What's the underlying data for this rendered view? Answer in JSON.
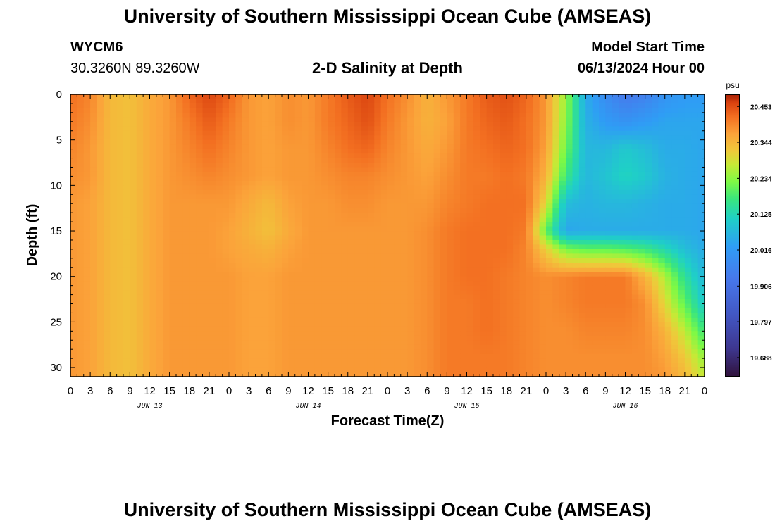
{
  "header": {
    "title": "University of Southern Mississippi Ocean Cube (AMSEAS)",
    "station_id": "WYCM6",
    "station_coords": "30.3260N  89.3260W",
    "subtitle": "2-D Salinity at Depth",
    "model_label": "Model Start Time",
    "model_time": "06/13/2024 Hour 00"
  },
  "footer": {
    "title": "University of Southern Mississippi Ocean Cube (AMSEAS)"
  },
  "chart_data": {
    "type": "heatmap",
    "title": "2-D Salinity at Depth",
    "xlabel": "Forecast Time(Z)",
    "ylabel": "Depth (ft)",
    "x_unit": "hours since model start",
    "xlim": [
      0,
      96
    ],
    "ylim": [
      31,
      0
    ],
    "x_tick_labels": [
      "0",
      "3",
      "6",
      "9",
      "12",
      "15",
      "18",
      "21",
      "0",
      "3",
      "6",
      "9",
      "12",
      "15",
      "18",
      "21",
      "0",
      "3",
      "6",
      "9",
      "12",
      "15",
      "18",
      "21",
      "0",
      "3",
      "6",
      "9",
      "12",
      "15",
      "18",
      "21",
      "0"
    ],
    "date_labels": [
      {
        "hour": 12,
        "label": "JUN 13"
      },
      {
        "hour": 36,
        "label": "JUN 14"
      },
      {
        "hour": 60,
        "label": "JUN 15"
      },
      {
        "hour": 84,
        "label": "JUN 16"
      }
    ],
    "y_ticks": [
      0,
      5,
      10,
      15,
      20,
      25,
      30
    ],
    "colorbar": {
      "unit": "psu",
      "min": 19.63,
      "max": 20.49,
      "labels": [
        "20.453",
        "20.344",
        "20.234",
        "20.125",
        "20.016",
        "19.906",
        "19.797",
        "19.688"
      ]
    },
    "z_unit": "psu",
    "time_hours": [
      0,
      3,
      6,
      9,
      12,
      15,
      18,
      21,
      24,
      27,
      30,
      33,
      36,
      39,
      42,
      45,
      48,
      51,
      54,
      57,
      60,
      63,
      66,
      69,
      72,
      75,
      78,
      81,
      84,
      87,
      90,
      93,
      96
    ],
    "depths_ft": [
      0,
      3,
      6,
      9,
      12,
      15,
      17,
      20,
      23,
      26,
      29,
      31
    ],
    "salinity_psu": [
      [
        20.42,
        20.4,
        20.34,
        20.33,
        20.36,
        20.38,
        20.43,
        20.46,
        20.43,
        20.38,
        20.37,
        20.39,
        20.38,
        20.41,
        20.44,
        20.46,
        20.42,
        20.39,
        20.35,
        20.38,
        20.41,
        20.44,
        20.45,
        20.43,
        20.38,
        20.24,
        20.05,
        19.98,
        19.93,
        19.95,
        20.0,
        20.02,
        20.02
      ],
      [
        20.41,
        20.39,
        20.34,
        20.33,
        20.36,
        20.38,
        20.41,
        20.44,
        20.41,
        20.38,
        20.37,
        20.39,
        20.38,
        20.41,
        20.43,
        20.45,
        20.41,
        20.38,
        20.35,
        20.37,
        20.41,
        20.43,
        20.44,
        20.42,
        20.38,
        20.23,
        20.06,
        20.02,
        20.0,
        20.02,
        20.04,
        20.04,
        20.04
      ],
      [
        20.4,
        20.38,
        20.34,
        20.33,
        20.36,
        20.38,
        20.4,
        20.42,
        20.4,
        20.38,
        20.37,
        20.38,
        20.38,
        20.4,
        20.42,
        20.43,
        20.4,
        20.38,
        20.36,
        20.38,
        20.41,
        20.42,
        20.43,
        20.42,
        20.37,
        20.21,
        20.07,
        20.07,
        20.1,
        20.08,
        20.05,
        20.05,
        20.04
      ],
      [
        20.39,
        20.38,
        20.34,
        20.33,
        20.36,
        20.38,
        20.39,
        20.4,
        20.39,
        20.38,
        20.37,
        20.38,
        20.38,
        20.39,
        20.4,
        20.4,
        20.39,
        20.38,
        20.37,
        20.39,
        20.41,
        20.41,
        20.42,
        20.41,
        20.35,
        20.17,
        20.07,
        20.09,
        20.12,
        20.1,
        20.06,
        20.05,
        20.04
      ],
      [
        20.38,
        20.37,
        20.34,
        20.33,
        20.36,
        20.38,
        20.38,
        20.38,
        20.38,
        20.36,
        20.34,
        20.37,
        20.38,
        20.38,
        20.39,
        20.39,
        20.38,
        20.38,
        20.38,
        20.4,
        20.41,
        20.42,
        20.42,
        20.42,
        20.3,
        20.08,
        20.06,
        20.07,
        20.07,
        20.06,
        20.05,
        20.05,
        20.04
      ],
      [
        20.38,
        20.37,
        20.34,
        20.33,
        20.36,
        20.38,
        20.38,
        20.38,
        20.37,
        20.35,
        20.33,
        20.36,
        20.38,
        20.38,
        20.38,
        20.38,
        20.38,
        20.38,
        20.39,
        20.41,
        20.42,
        20.42,
        20.42,
        20.41,
        20.2,
        20.04,
        20.05,
        20.05,
        20.05,
        20.05,
        20.05,
        20.05,
        20.04
      ],
      [
        20.38,
        20.37,
        20.34,
        20.33,
        20.36,
        20.38,
        20.38,
        20.38,
        20.37,
        20.36,
        20.35,
        20.37,
        20.38,
        20.38,
        20.38,
        20.38,
        20.38,
        20.38,
        20.39,
        20.41,
        20.42,
        20.42,
        20.42,
        20.4,
        20.31,
        20.22,
        20.2,
        20.2,
        20.19,
        20.17,
        20.13,
        20.08,
        20.05
      ],
      [
        20.38,
        20.37,
        20.34,
        20.33,
        20.36,
        20.38,
        20.38,
        20.38,
        20.38,
        20.37,
        20.37,
        20.38,
        20.38,
        20.38,
        20.38,
        20.38,
        20.38,
        20.38,
        20.39,
        20.41,
        20.42,
        20.42,
        20.41,
        20.4,
        20.39,
        20.4,
        20.41,
        20.41,
        20.41,
        20.35,
        20.26,
        20.15,
        20.07
      ],
      [
        20.38,
        20.37,
        20.34,
        20.33,
        20.36,
        20.38,
        20.38,
        20.38,
        20.38,
        20.37,
        20.37,
        20.38,
        20.38,
        20.38,
        20.38,
        20.38,
        20.38,
        20.38,
        20.39,
        20.41,
        20.41,
        20.42,
        20.41,
        20.4,
        20.39,
        20.4,
        20.41,
        20.41,
        20.41,
        20.39,
        20.3,
        20.2,
        20.1
      ],
      [
        20.38,
        20.37,
        20.34,
        20.33,
        20.36,
        20.38,
        20.38,
        20.38,
        20.38,
        20.37,
        20.37,
        20.38,
        20.38,
        20.38,
        20.38,
        20.38,
        20.38,
        20.38,
        20.39,
        20.41,
        20.41,
        20.42,
        20.41,
        20.4,
        20.39,
        20.39,
        20.4,
        20.4,
        20.4,
        20.39,
        20.35,
        20.27,
        20.17
      ],
      [
        20.38,
        20.37,
        20.34,
        20.33,
        20.36,
        20.38,
        20.38,
        20.38,
        20.38,
        20.37,
        20.37,
        20.38,
        20.38,
        20.38,
        20.38,
        20.38,
        20.38,
        20.38,
        20.39,
        20.41,
        20.41,
        20.41,
        20.41,
        20.4,
        20.39,
        20.39,
        20.39,
        20.39,
        20.39,
        20.39,
        20.37,
        20.32,
        20.24
      ],
      [
        20.38,
        20.37,
        20.34,
        20.33,
        20.36,
        20.38,
        20.38,
        20.38,
        20.38,
        20.37,
        20.37,
        20.38,
        20.38,
        20.38,
        20.38,
        20.38,
        20.38,
        20.38,
        20.39,
        20.41,
        20.41,
        20.41,
        20.41,
        20.4,
        20.39,
        20.39,
        20.39,
        20.39,
        20.39,
        20.39,
        20.38,
        20.34,
        20.27
      ]
    ]
  }
}
